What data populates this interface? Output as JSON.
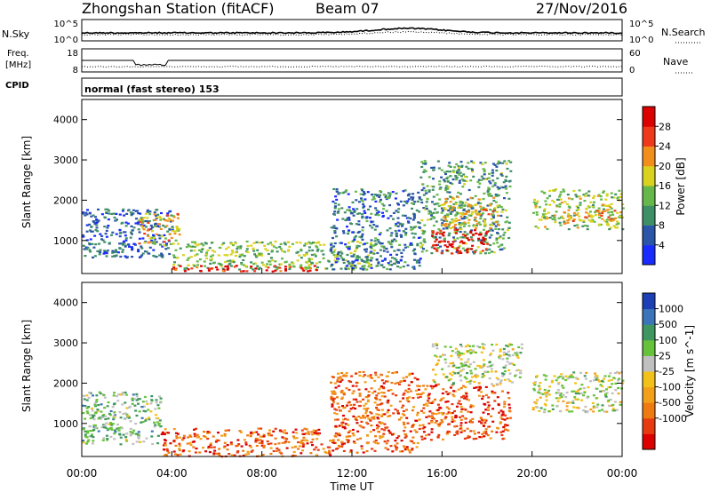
{
  "header": {
    "station": "Zhongshan Station (fitACF)",
    "beam": "Beam 07",
    "date": "27/Nov/2016"
  },
  "strip_noise": {
    "left_label": "N.Sky",
    "right_label": "N.Search",
    "left_ticks": [
      "10^5",
      "10^0"
    ],
    "right_ticks": [
      "10^5",
      "10^0"
    ]
  },
  "strip_freq": {
    "left_label_1": "Freq.",
    "left_label_2": "[MHz]",
    "right_label": "Nave",
    "left_ticks": [
      "18",
      "8"
    ],
    "right_ticks": [
      "60",
      "0"
    ]
  },
  "strip_cpid": {
    "label": "CPID",
    "mode": "normal (fast stereo) 153"
  },
  "axes": {
    "ylabel": "Slant Range [km]",
    "xlabel": "Time UT",
    "x_ticks": [
      "00:00",
      "04:00",
      "08:00",
      "12:00",
      "16:00",
      "20:00",
      "00:00"
    ],
    "y_ticks": [
      "1000",
      "2000",
      "3000",
      "4000"
    ]
  },
  "power_bar": {
    "label": "Power [dB]",
    "ticks": [
      "4",
      "8",
      "12",
      "16",
      "20",
      "24",
      "28"
    ],
    "colors": [
      "#1a2bff",
      "#2a55a8",
      "#3f8f66",
      "#66b84a",
      "#d9d21e",
      "#f28f1c",
      "#ee3a1a",
      "#dc0000"
    ]
  },
  "velocity_bar": {
    "label": "Velocity [m s^-1]",
    "ticks": [
      "1000",
      "500",
      "100",
      "25",
      "-25",
      "-100",
      "-500",
      "-1000"
    ],
    "colors": [
      "#1c3fb6",
      "#3b74b8",
      "#3f9660",
      "#66c23a",
      "#c0c0c0",
      "#f2c21a",
      "#f2a01a",
      "#ef7a10",
      "#e83a10",
      "#dc0000"
    ]
  },
  "chart_data": {
    "type": "heatmap",
    "title": "Zhongshan Station (fitACF) Beam 07 27/Nov/2016",
    "xlabel": "Time UT",
    "ylabel": "Slant Range [km]",
    "x_range_hours": [
      0,
      24
    ],
    "y_range_km": [
      180,
      4500
    ],
    "panels": [
      {
        "name": "Power [dB]",
        "color_range": [
          0,
          30
        ],
        "regions": [
          {
            "t0": 0.0,
            "t1": 4.0,
            "r0": 600,
            "r1": 1800,
            "level": 0.2
          },
          {
            "t0": 2.5,
            "t1": 4.3,
            "r0": 900,
            "r1": 1700,
            "level": 0.6
          },
          {
            "t0": 4.0,
            "t1": 13.0,
            "r0": 300,
            "r1": 1000,
            "level": 0.45
          },
          {
            "t0": 4.0,
            "t1": 11.0,
            "r0": 250,
            "r1": 400,
            "level": 0.9
          },
          {
            "t0": 11.0,
            "t1": 15.0,
            "r0": 300,
            "r1": 2300,
            "level": 0.25
          },
          {
            "t0": 15.0,
            "t1": 19.0,
            "r0": 700,
            "r1": 3000,
            "level": 0.35
          },
          {
            "t0": 15.5,
            "t1": 18.0,
            "r0": 700,
            "r1": 1300,
            "level": 0.95
          },
          {
            "t0": 16.0,
            "t1": 18.5,
            "r0": 1300,
            "r1": 2100,
            "level": 0.6
          },
          {
            "t0": 20.0,
            "t1": 24.0,
            "r0": 1300,
            "r1": 2300,
            "level": 0.5
          },
          {
            "t0": 21.5,
            "t1": 24.0,
            "r0": 1500,
            "r1": 1800,
            "level": 0.7
          }
        ]
      },
      {
        "name": "Velocity [m s^-1]",
        "color_range": [
          -1000,
          1000
        ],
        "regions": [
          {
            "t0": 0.0,
            "t1": 3.5,
            "r0": 500,
            "r1": 1800,
            "level": 0.35
          },
          {
            "t0": 3.5,
            "t1": 11.0,
            "r0": 200,
            "r1": 900,
            "level": 0.8
          },
          {
            "t0": 11.0,
            "t1": 15.0,
            "r0": 300,
            "r1": 2300,
            "level": 0.78
          },
          {
            "t0": 15.0,
            "t1": 19.0,
            "r0": 600,
            "r1": 2000,
            "level": 0.82
          },
          {
            "t0": 15.5,
            "t1": 19.5,
            "r0": 2000,
            "r1": 3000,
            "level": 0.45
          },
          {
            "t0": 20.0,
            "t1": 24.0,
            "r0": 1300,
            "r1": 2300,
            "level": 0.45
          }
        ]
      }
    ]
  }
}
